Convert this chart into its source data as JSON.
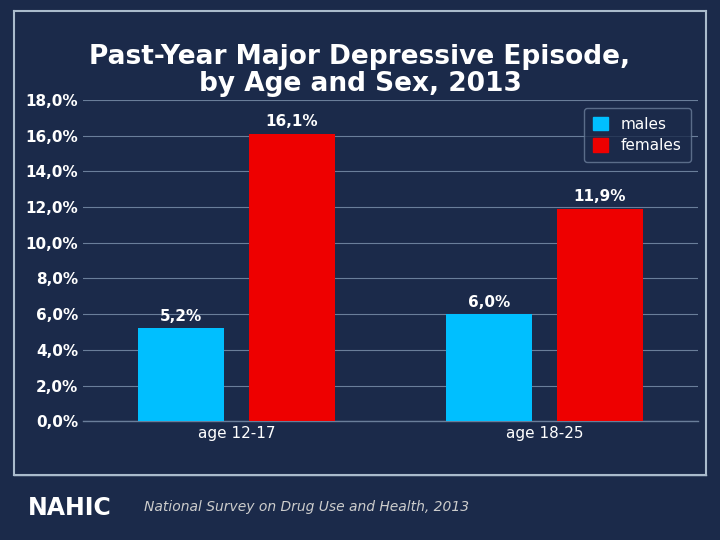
{
  "title_line1": "Past-Year Major Depressive Episode,",
  "title_line2": "by Age and Sex, 2013",
  "categories": [
    "age 12-17",
    "age 18-25"
  ],
  "males": [
    5.2,
    6.0
  ],
  "females": [
    16.1,
    11.9
  ],
  "male_color": "#00BFFF",
  "female_color": "#EE0000",
  "background_color": "#1B2A4A",
  "plot_bg_color": "#1B2A4A",
  "grid_color": "#6A7E9A",
  "text_color": "#FFFFFF",
  "title_fontsize": 19,
  "tick_fontsize": 11,
  "bar_label_fontsize": 11,
  "legend_fontsize": 11,
  "ylim": [
    0,
    18
  ],
  "yticks": [
    0,
    2,
    4,
    6,
    8,
    10,
    12,
    14,
    16,
    18
  ],
  "ytick_labels": [
    "0,0%",
    "2,0%",
    "4,0%",
    "6,0%",
    "8,0%",
    "10,0%",
    "12,0%",
    "14,0%",
    "16,0%",
    "18,0%"
  ],
  "male_labels": [
    "5,2%",
    "6,0%"
  ],
  "female_labels": [
    "16,1%",
    "11,9%"
  ],
  "bar_width": 0.28,
  "nahic_bg": "#2255AA",
  "footer_text": "National Survey on Drug Use and Health, 2013",
  "footer_fontsize": 10,
  "border_color": "#AABBCC"
}
